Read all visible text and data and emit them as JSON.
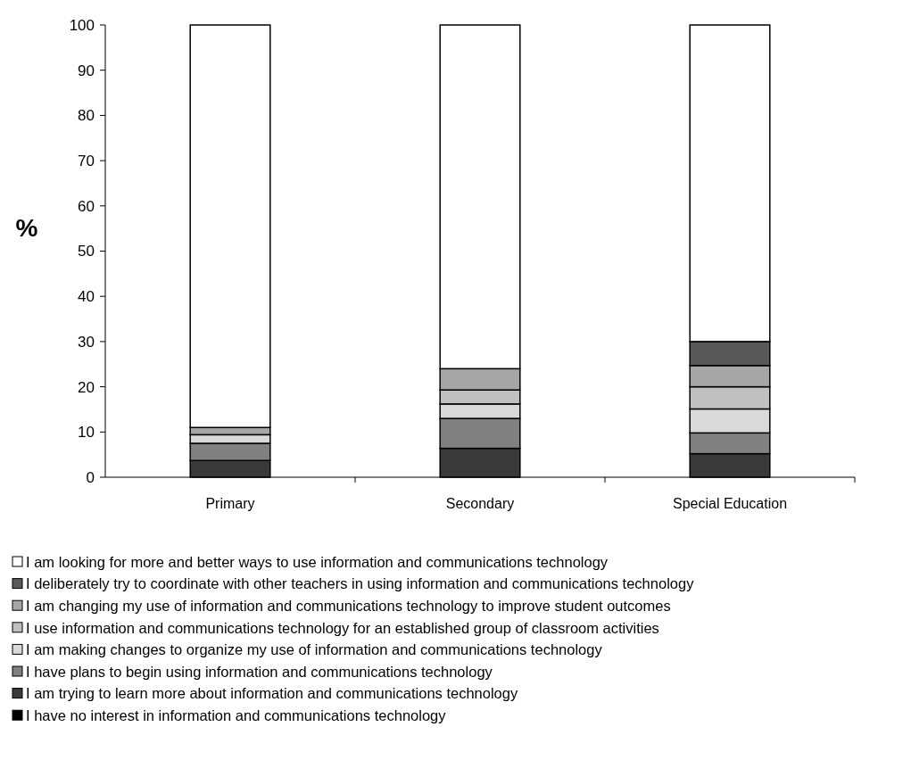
{
  "chart_data": {
    "type": "bar",
    "stacked": true,
    "ylabel": "%",
    "categories": [
      "Primary",
      "Secondary",
      "Special Education"
    ],
    "ylim": [
      0,
      100
    ],
    "yticks": [
      0,
      10,
      20,
      30,
      40,
      50,
      60,
      70,
      80,
      90,
      100
    ],
    "grid": false,
    "legend": "bottom",
    "series": [
      {
        "name": "I have no interest in information and communications technology",
        "color": "#000000",
        "values": [
          0,
          0,
          0
        ]
      },
      {
        "name": "I am trying to learn more about information and communications technology",
        "color": "#3a3a3a",
        "values": [
          3.7,
          6.4,
          5.2
        ]
      },
      {
        "name": "I have plans to begin using information and communications technology",
        "color": "#808080",
        "values": [
          3.8,
          6.6,
          4.6
        ]
      },
      {
        "name": "I am making changes to organize my use of information and communications technology",
        "color": "#d9d9d9",
        "values": [
          1.9,
          3.2,
          5.3
        ]
      },
      {
        "name": "I use information and communications technology for an established group of classroom activities",
        "color": "#c0c0c0",
        "values": [
          0,
          3.1,
          4.9
        ]
      },
      {
        "name": "I am changing my use of information and communications technology to improve student outcomes",
        "color": "#a6a6a6",
        "values": [
          1.6,
          4.7,
          4.7
        ]
      },
      {
        "name": "I deliberately try to coordinate with other teachers in using information and communications technology",
        "color": "#595959",
        "values": [
          0,
          0,
          5.3
        ]
      },
      {
        "name": "I am looking for more and better ways to use information and communications technology",
        "color": "#ffffff",
        "values": [
          89,
          76,
          70
        ]
      }
    ]
  }
}
